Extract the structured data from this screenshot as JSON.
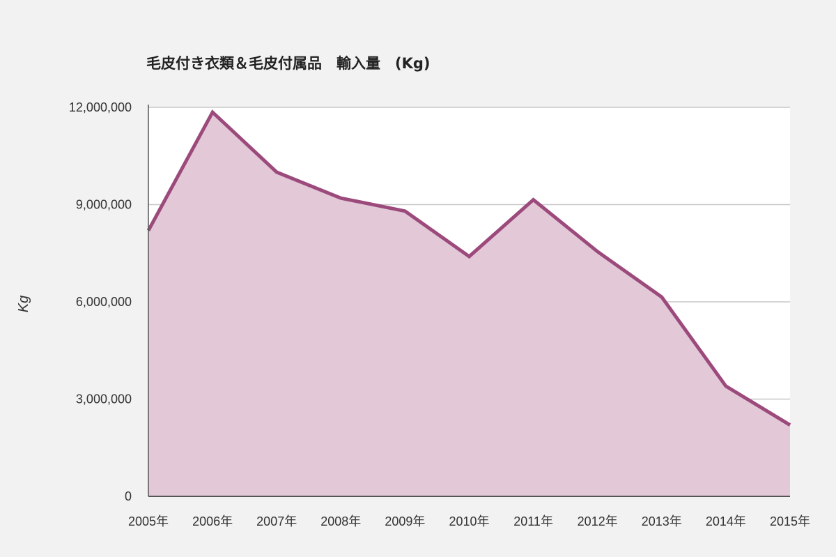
{
  "chart_data": {
    "type": "area",
    "title": "毛皮付き衣類＆毛皮付属品　輸入量　(Kg)",
    "xlabel": "",
    "ylabel": "Kg",
    "categories": [
      "2005年",
      "2006年",
      "2007年",
      "2008年",
      "2009年",
      "2010年",
      "2011年",
      "2012年",
      "2013年",
      "2014年",
      "2015年"
    ],
    "series": [
      {
        "values": [
          8200000,
          11850000,
          10000000,
          9200000,
          8800000,
          7400000,
          9150000,
          7550000,
          6150000,
          3400000,
          2200000
        ]
      }
    ],
    "ylim": [
      0,
      12000000
    ],
    "yticks": [
      0,
      3000000,
      6000000,
      9000000,
      12000000
    ],
    "ytick_labels": [
      "0",
      "3,000,000",
      "6,000,000",
      "9,000,000",
      "12,000,000"
    ],
    "grid": true,
    "colors": {
      "line": "#9c4a7c",
      "fill": "#e3c9d8",
      "plot_bg": "#ffffff",
      "page_bg": "#f2f2f2",
      "grid": "#c8c8c8",
      "axis": "#555555"
    }
  }
}
